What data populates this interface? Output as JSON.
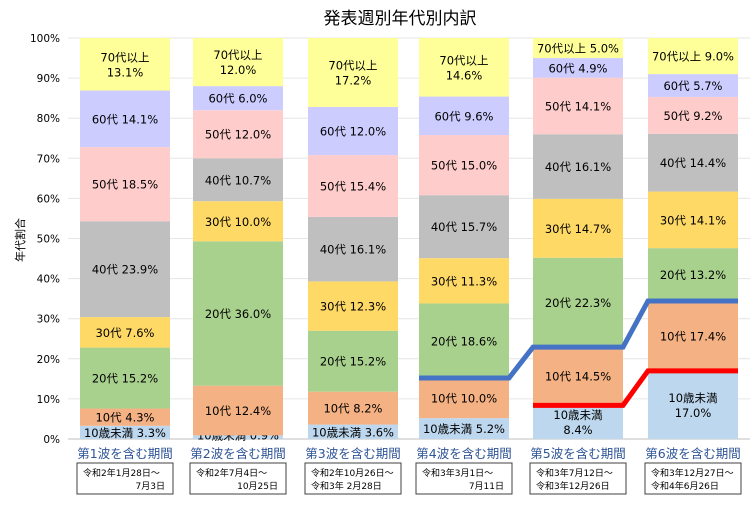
{
  "chart_data": {
    "type": "bar",
    "stacked": true,
    "title": "発表週別年代別内訳",
    "ylabel": "年代割合",
    "xlabel": "",
    "ylim": [
      0,
      100
    ],
    "yticks": [
      "0%",
      "10%",
      "20%",
      "30%",
      "40%",
      "50%",
      "60%",
      "70%",
      "80%",
      "90%",
      "100%"
    ],
    "grid": true,
    "categories": [
      "第1波を含む期間",
      "第2波を含む期間",
      "第3波を含む期間",
      "第4波を含む期間",
      "第5波を含む期間",
      "第6波を含む期間"
    ],
    "periods": [
      [
        "令和2年1月28日～",
        "7月3日"
      ],
      [
        "令和2年7月4日～",
        "10月25日"
      ],
      [
        "令和2年10月26日～",
        "令和3年 2月28日"
      ],
      [
        "令和3年3月1日～",
        "7月11日"
      ],
      [
        "令和3年7月12日～",
        "令和3年12月26日"
      ],
      [
        "令和3年12月27日～",
        "令和4年6月26日"
      ]
    ],
    "series": [
      {
        "name": "10歳未満",
        "color": "#bdd7ee",
        "values": [
          3.3,
          0.9,
          3.6,
          5.2,
          8.4,
          17.0
        ]
      },
      {
        "name": "10代",
        "color": "#f4b183",
        "values": [
          4.3,
          12.4,
          8.2,
          10.0,
          14.5,
          17.4
        ]
      },
      {
        "name": "20代",
        "color": "#a9d18e",
        "values": [
          15.2,
          36.0,
          15.2,
          18.6,
          22.3,
          13.2
        ]
      },
      {
        "name": "30代",
        "color": "#ffd966",
        "values": [
          7.6,
          10.0,
          12.3,
          11.3,
          14.7,
          14.1
        ]
      },
      {
        "name": "40代",
        "color": "#bfbfbf",
        "values": [
          23.9,
          10.7,
          16.1,
          15.7,
          16.1,
          14.4
        ]
      },
      {
        "name": "50代",
        "color": "#ffcccc",
        "values": [
          18.5,
          12.0,
          15.4,
          15.0,
          14.1,
          9.2
        ]
      },
      {
        "name": "60代",
        "color": "#ccccff",
        "values": [
          14.1,
          6.0,
          12.0,
          9.6,
          4.9,
          5.7
        ]
      },
      {
        "name": "70代以上",
        "color": "#ffff99",
        "values": [
          13.1,
          12.0,
          17.2,
          14.6,
          5.0,
          9.0
        ]
      }
    ],
    "labels": [
      [
        [
          "10歳未満 3.3%"
        ],
        [
          "10代 4.3%"
        ],
        [
          "20代 15.2%"
        ],
        [
          "30代 7.6%"
        ],
        [
          "40代 23.9%"
        ],
        [
          "50代 18.5%"
        ],
        [
          "60代 14.1%"
        ],
        [
          "70代以上",
          "13.1%"
        ]
      ],
      [
        [
          "10歳未満 0.9%"
        ],
        [
          "10代 12.4%"
        ],
        [
          "20代 36.0%"
        ],
        [
          "30代 10.0%"
        ],
        [
          "40代 10.7%"
        ],
        [
          "50代 12.0%"
        ],
        [
          "60代 6.0%"
        ],
        [
          "70代以上",
          "12.0%"
        ]
      ],
      [
        [
          "10歳未満 3.6%"
        ],
        [
          "10代 8.2%"
        ],
        [
          "20代 15.2%"
        ],
        [
          "30代 12.3%"
        ],
        [
          "40代 16.1%"
        ],
        [
          "50代 15.4%"
        ],
        [
          "60代 12.0%"
        ],
        [
          "70代以上",
          "17.2%"
        ]
      ],
      [
        [
          "10歳未満 5.2%"
        ],
        [
          "10代 10.0%"
        ],
        [
          "20代 18.6%"
        ],
        [
          "30代 11.3%"
        ],
        [
          "40代 15.7%"
        ],
        [
          "50代 15.0%"
        ],
        [
          "60代 9.6%"
        ],
        [
          "70代以上",
          "14.6%"
        ]
      ],
      [
        [
          "10歳未満",
          "8.4%"
        ],
        [
          "10代 14.5%"
        ],
        [
          "20代 22.3%"
        ],
        [
          "30代 14.7%"
        ],
        [
          "40代 16.1%"
        ],
        [
          "50代 14.1%"
        ],
        [
          "60代 4.9%"
        ],
        [
          "70代以上 5.0%"
        ]
      ],
      [
        [
          "10歳未満",
          "17.0%"
        ],
        [
          "10代 17.4%"
        ],
        [
          "20代 13.2%"
        ],
        [
          "30代 14.1%"
        ],
        [
          "40代 14.4%"
        ],
        [
          "50代 9.2%"
        ],
        [
          "60代 5.7%"
        ],
        [
          "70代以上 9.0%"
        ]
      ]
    ],
    "trend_lines": [
      {
        "name": "10歳未満 推移",
        "color": "#ff0000",
        "from_category": 4,
        "series_upto": 0
      },
      {
        "name": "20歳未満 推移",
        "color": "#4472c4",
        "from_category": 3,
        "series_upto": 1
      }
    ],
    "category_label_color": "#2f5597"
  }
}
